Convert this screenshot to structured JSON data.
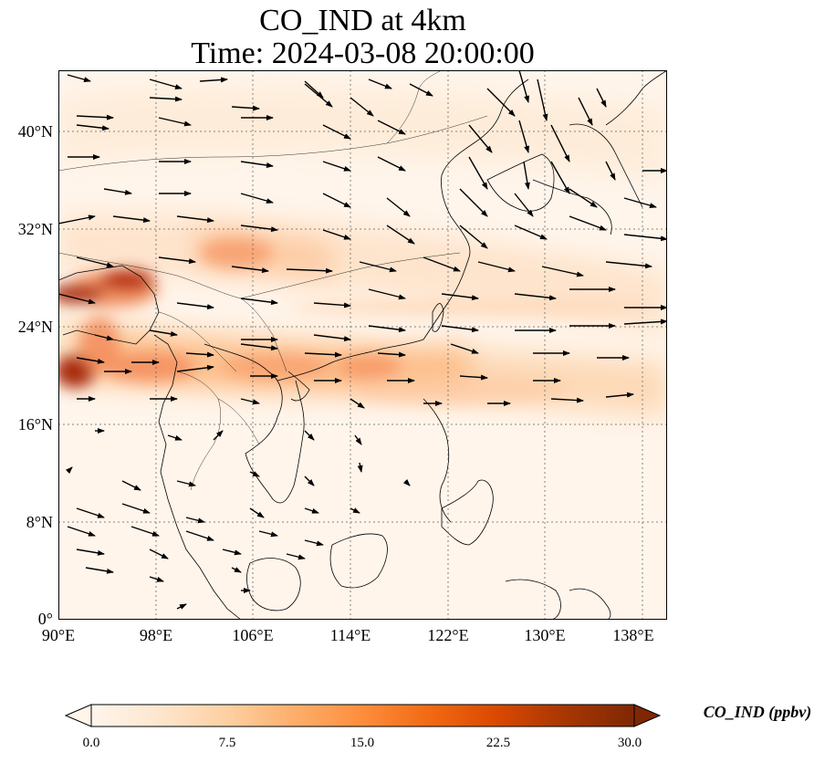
{
  "title_line1": "CO_IND at 4km",
  "title_line2": "Time: 2024-03-08 20:00:00",
  "map": {
    "lon_range": [
      90,
      140
    ],
    "lat_range": [
      0,
      45
    ],
    "lat_ticks": [
      {
        "value": 40,
        "label": "40°N"
      },
      {
        "value": 32,
        "label": "32°N"
      },
      {
        "value": 24,
        "label": "24°N"
      },
      {
        "value": 16,
        "label": "16°N"
      },
      {
        "value": 8,
        "label": "8°N"
      },
      {
        "value": 0,
        "label": "0°"
      }
    ],
    "lon_ticks": [
      {
        "value": 90,
        "label": "90°E"
      },
      {
        "value": 98,
        "label": "98°E"
      },
      {
        "value": 106,
        "label": "106°E"
      },
      {
        "value": 114,
        "label": "114°E"
      },
      {
        "value": 122,
        "label": "122°E"
      },
      {
        "value": 130,
        "label": "130°E"
      },
      {
        "value": 138,
        "label": "138°E"
      }
    ]
  },
  "colorbar": {
    "label": "CO_IND (ppbv)",
    "min": 0,
    "max": 30,
    "ticks": [
      "0.0",
      "7.5",
      "15.0",
      "22.5",
      "30.0"
    ],
    "colors": [
      "#fff5eb",
      "#fee6ce",
      "#fdd0a2",
      "#fdae6b",
      "#fd8d3c",
      "#f16913",
      "#d94801",
      "#a63603",
      "#7f2704"
    ]
  }
}
